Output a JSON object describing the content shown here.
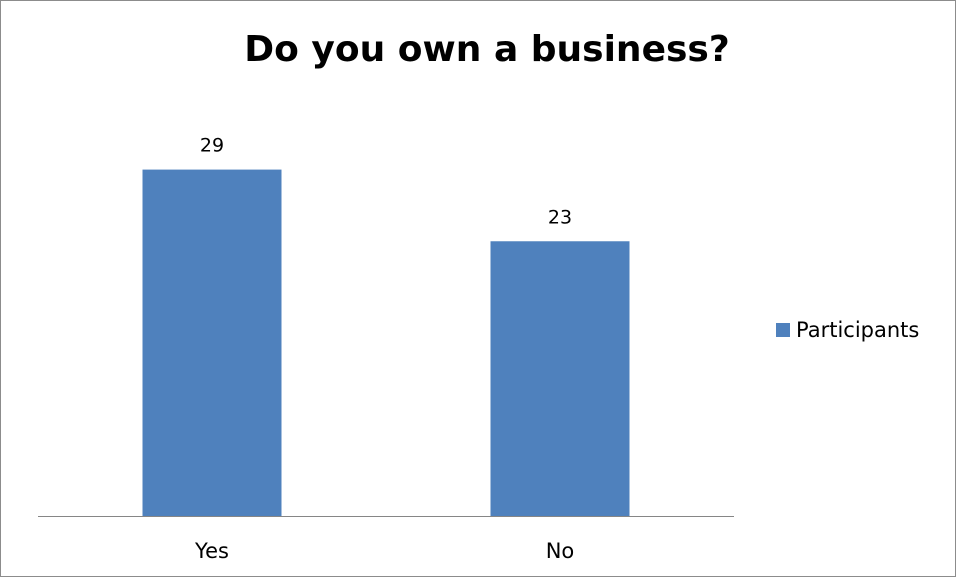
{
  "chart_data": {
    "type": "bar",
    "title": "Do you own a business?",
    "categories": [
      "Yes",
      "No"
    ],
    "series": [
      {
        "name": "Participants",
        "values": [
          29,
          23
        ],
        "color": "#4f81bd"
      }
    ],
    "data_labels": [
      "29",
      "23"
    ],
    "ylim": [
      0,
      36.5
    ],
    "grid": false,
    "legend_position": "right"
  }
}
